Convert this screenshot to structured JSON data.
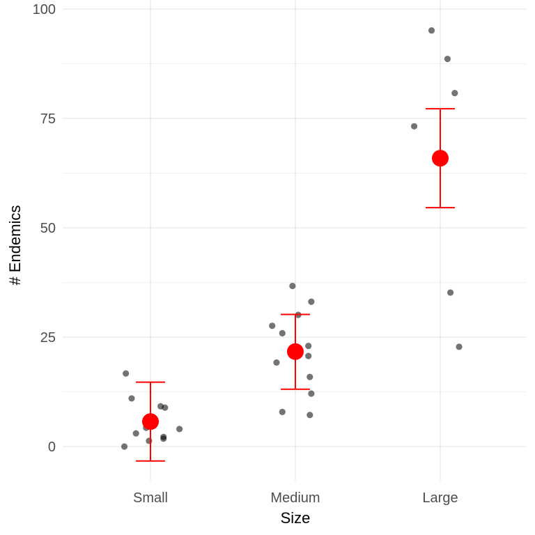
{
  "chart_data": {
    "type": "scatter",
    "xlabel": "Size",
    "ylabel": "# Endemics",
    "categories": [
      "Small",
      "Medium",
      "Large"
    ],
    "ylim": [
      -8,
      100
    ],
    "yticks": [
      0,
      25,
      50,
      75,
      100
    ],
    "grid": true,
    "colors": {
      "points": "#000000",
      "summary": "#ff0000",
      "grid": "#ebebeb"
    },
    "points": [
      {
        "category": "Small",
        "jitter": -0.17,
        "y": 16.7
      },
      {
        "category": "Small",
        "jitter": -0.13,
        "y": 11.0
      },
      {
        "category": "Small",
        "jitter": -0.1,
        "y": 3.0
      },
      {
        "category": "Small",
        "jitter": -0.18,
        "y": 0.0
      },
      {
        "category": "Small",
        "jitter": -0.03,
        "y": 4.3
      },
      {
        "category": "Small",
        "jitter": -0.01,
        "y": 1.3
      },
      {
        "category": "Small",
        "jitter": 0.07,
        "y": 9.2
      },
      {
        "category": "Small",
        "jitter": 0.1,
        "y": 8.9
      },
      {
        "category": "Small",
        "jitter": 0.09,
        "y": 2.2
      },
      {
        "category": "Small",
        "jitter": 0.09,
        "y": 1.8
      },
      {
        "category": "Small",
        "jitter": 0.2,
        "y": 4.0
      },
      {
        "category": "Medium",
        "jitter": -0.16,
        "y": 27.6
      },
      {
        "category": "Medium",
        "jitter": -0.09,
        "y": 25.9
      },
      {
        "category": "Medium",
        "jitter": -0.13,
        "y": 19.2
      },
      {
        "category": "Medium",
        "jitter": -0.09,
        "y": 7.9
      },
      {
        "category": "Medium",
        "jitter": -0.02,
        "y": 36.7
      },
      {
        "category": "Medium",
        "jitter": 0.02,
        "y": 30.1
      },
      {
        "category": "Medium",
        "jitter": 0.11,
        "y": 33.1
      },
      {
        "category": "Medium",
        "jitter": 0.09,
        "y": 23.0
      },
      {
        "category": "Medium",
        "jitter": 0.09,
        "y": 20.7
      },
      {
        "category": "Medium",
        "jitter": 0.1,
        "y": 15.9
      },
      {
        "category": "Medium",
        "jitter": 0.11,
        "y": 12.1
      },
      {
        "category": "Medium",
        "jitter": 0.1,
        "y": 7.2
      },
      {
        "category": "Large",
        "jitter": -0.06,
        "y": 95.1
      },
      {
        "category": "Large",
        "jitter": 0.05,
        "y": 88.6
      },
      {
        "category": "Large",
        "jitter": 0.1,
        "y": 80.8
      },
      {
        "category": "Large",
        "jitter": -0.18,
        "y": 73.2
      },
      {
        "category": "Large",
        "jitter": 0.07,
        "y": 35.2
      },
      {
        "category": "Large",
        "jitter": 0.13,
        "y": 22.8
      }
    ],
    "summary": [
      {
        "category": "Small",
        "mean": 5.7,
        "lower": -3.3,
        "upper": 14.7
      },
      {
        "category": "Medium",
        "mean": 21.7,
        "lower": 13.1,
        "upper": 30.2
      },
      {
        "category": "Large",
        "mean": 65.9,
        "lower": 54.6,
        "upper": 77.2
      }
    ]
  }
}
